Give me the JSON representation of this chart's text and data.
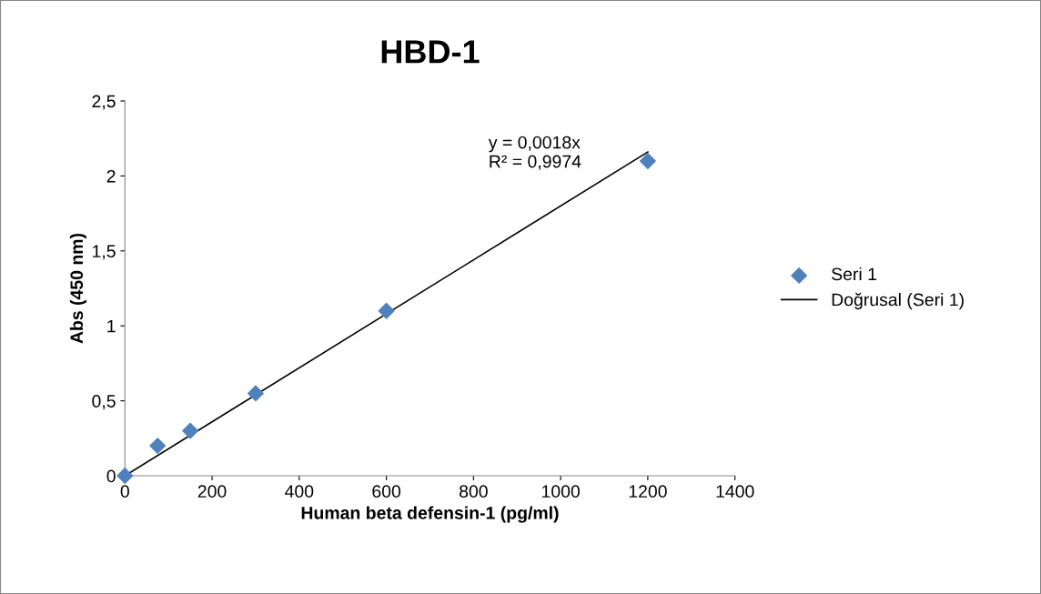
{
  "chart_data": {
    "type": "scatter",
    "title": "HBD-1",
    "xlabel": "Human beta defensin-1 (pg/ml)",
    "ylabel": "Abs (450 nm)",
    "x": [
      0,
      75,
      150,
      300,
      600,
      1200
    ],
    "series": [
      {
        "name": "Seri 1",
        "color": "#4f81bd",
        "marker": "diamond",
        "values": [
          0,
          0.2,
          0.3,
          0.55,
          1.1,
          2.1
        ]
      },
      {
        "name": "Doğrusal (Seri 1)",
        "type": "line",
        "color": "#000000",
        "marker": "none",
        "line_style": "solid",
        "x": [
          0,
          1200
        ],
        "values": [
          0,
          2.16
        ]
      }
    ],
    "annotations": [
      "y = 0,0018x\nR² = 0,9974"
    ],
    "xlim": [
      0,
      1400
    ],
    "xticks": [
      0,
      200,
      400,
      600,
      800,
      1000,
      1200,
      1400
    ],
    "ylim": [
      0,
      2.5
    ],
    "yticks": [
      0,
      {
        "value": 0.5,
        "label": "0,5"
      },
      1,
      {
        "value": 1.5,
        "label": "1,5"
      },
      2,
      {
        "value": 2.5,
        "label": "2,5"
      }
    ],
    "grid": false,
    "legend": "right"
  }
}
